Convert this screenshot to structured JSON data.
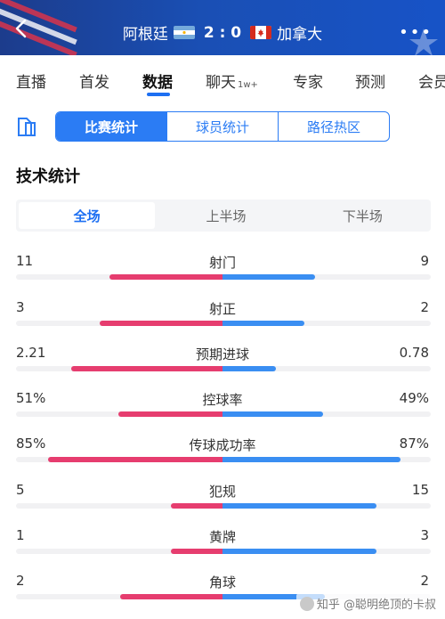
{
  "header": {
    "team_home": "阿根廷",
    "team_away": "加拿大",
    "score": "2 : 0",
    "more_label": "•••"
  },
  "tabs": [
    {
      "label": "直播"
    },
    {
      "label": "首发"
    },
    {
      "label": "数据",
      "active": true
    },
    {
      "label": "聊天",
      "badge": "1w+"
    },
    {
      "label": "专家"
    },
    {
      "label": "预测"
    },
    {
      "label": "会员"
    }
  ],
  "segments": [
    {
      "label": "比赛统计",
      "active": true
    },
    {
      "label": "球员统计"
    },
    {
      "label": "路径热区"
    }
  ],
  "section_title": "技术统计",
  "periods": [
    {
      "label": "全场",
      "active": true
    },
    {
      "label": "上半场"
    },
    {
      "label": "下半场"
    }
  ],
  "stats": [
    {
      "label": "射门",
      "left": "11",
      "right": "9",
      "left_share": 0.55,
      "right_share": 0.45
    },
    {
      "label": "射正",
      "left": "3",
      "right": "2",
      "left_share": 0.6,
      "right_share": 0.4
    },
    {
      "label": "预期进球",
      "left": "2.21",
      "right": "0.78",
      "left_share": 0.74,
      "right_share": 0.26
    },
    {
      "label": "控球率",
      "left": "51%",
      "right": "49%",
      "left_share": 0.51,
      "right_share": 0.49
    },
    {
      "label": "传球成功率",
      "left": "85%",
      "right": "87%",
      "left_share": 0.85,
      "right_share": 0.87
    },
    {
      "label": "犯规",
      "left": "5",
      "right": "15",
      "left_share": 0.25,
      "right_share": 0.75
    },
    {
      "label": "黄牌",
      "left": "1",
      "right": "3",
      "left_share": 0.25,
      "right_share": 0.75
    },
    {
      "label": "角球",
      "left": "2",
      "right": "2",
      "left_share": 0.5,
      "right_share": 0.5
    }
  ],
  "colors": {
    "home_bar": "#e63d6f",
    "away_bar": "#3a8ef2",
    "accent": "#2b7cf4",
    "header_bg": "#1a4fb4"
  },
  "watermark": "知乎 @聪明绝顶的卡叔"
}
